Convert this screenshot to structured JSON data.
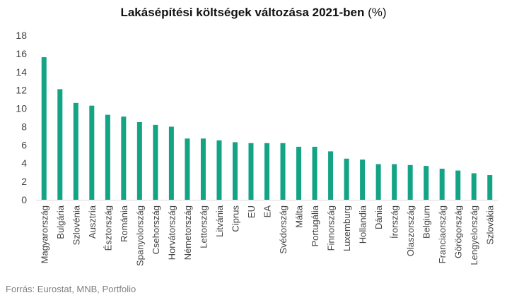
{
  "chart_data": {
    "type": "bar",
    "title": "Lakásépítési költségek változása 2021-ben",
    "title_unit": "(%)",
    "categories": [
      "Magyarország",
      "Bulgária",
      "Szlovénia",
      "Ausztria",
      "Észtország",
      "Románia",
      "Spanyolország",
      "Csehország",
      "Horvátország",
      "Németország",
      "Lettország",
      "Litvánia",
      "Ciprus",
      "EU",
      "EA",
      "Svédország",
      "Málta",
      "Portugália",
      "Finnország",
      "Luxemburg",
      "Hollandia",
      "Dánia",
      "Írország",
      "Olaszország",
      "Belgium",
      "Franciaország",
      "Görögország",
      "Lengyelország",
      "Szlovákia"
    ],
    "values": [
      15.6,
      12.1,
      10.6,
      10.3,
      9.3,
      9.1,
      8.5,
      8.2,
      8.0,
      6.7,
      6.7,
      6.5,
      6.3,
      6.2,
      6.2,
      6.2,
      5.8,
      5.8,
      5.3,
      4.5,
      4.4,
      3.9,
      3.9,
      3.8,
      3.7,
      3.4,
      3.2,
      2.9,
      2.7
    ],
    "ylim": [
      0,
      18
    ],
    "yticks": [
      0,
      2,
      4,
      6,
      8,
      10,
      12,
      14,
      16,
      18
    ],
    "xlabel": "",
    "ylabel": "",
    "grid": false,
    "bar_color": "#13a385"
  },
  "source": "Forrás: Eurostat, MNB, Portfolio"
}
